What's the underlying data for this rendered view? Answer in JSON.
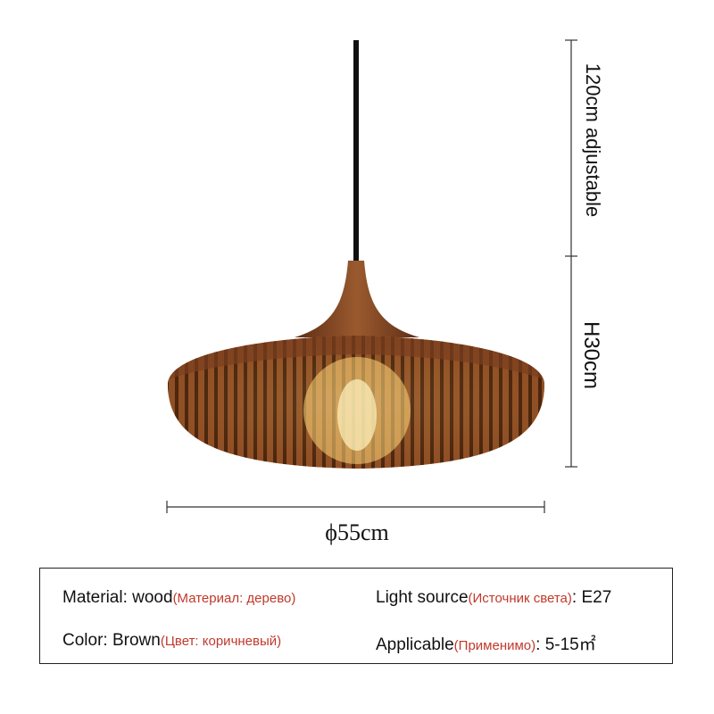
{
  "dimensions": {
    "cord_length": "120cm adjustable",
    "height": "H30cm",
    "diameter": "ϕ55cm"
  },
  "specs": [
    {
      "label": "Material: wood",
      "translation": "(Материал: дерево)",
      "suffix": ""
    },
    {
      "label": "Light source",
      "translation": "(Источник света)",
      "suffix": ": E27"
    },
    {
      "label": "Color: Brown",
      "translation": "(Цвет: коричневый)",
      "suffix": ""
    },
    {
      "label": "Applicable",
      "translation": "(Применимо)",
      "suffix": ": 5-15㎡"
    }
  ],
  "colors": {
    "wood": "#7a3f1f",
    "light": "#f5c25a",
    "translation_text": "#c0392b"
  }
}
